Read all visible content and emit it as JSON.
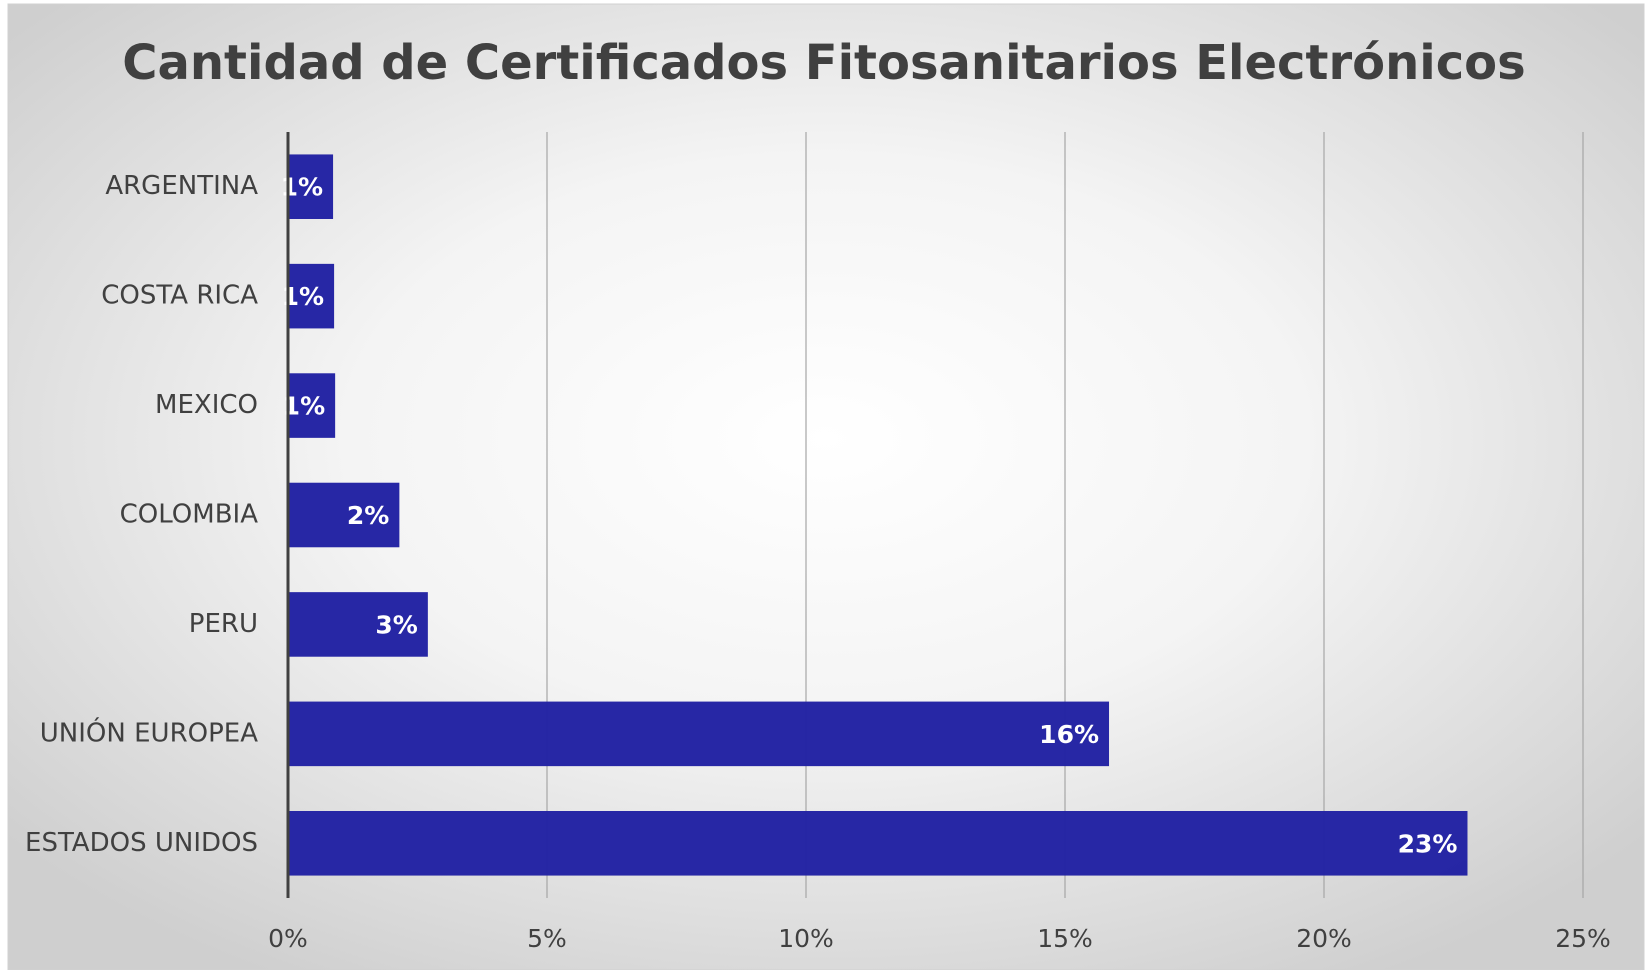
{
  "chart_data": {
    "type": "bar",
    "orientation": "horizontal",
    "title": "Cantidad de Certificados Fitosanitarios Electrónicos",
    "categories": [
      "ARGENTINA",
      "COSTA RICA",
      "MEXICO",
      "COLOMBIA",
      "PERU",
      "UNIÓN EUROPEA",
      "ESTADOS UNIDOS"
    ],
    "values": [
      0.87,
      0.89,
      0.91,
      2.15,
      2.7,
      15.85,
      22.77
    ],
    "value_labels": [
      "1%",
      "1%",
      "1%",
      "2%",
      "3%",
      "16%",
      "23%"
    ],
    "color": "#2323a3",
    "xlim": [
      0,
      25
    ],
    "xticks": [
      {
        "value": 0,
        "label": "0%"
      },
      {
        "value": 5,
        "label": "5%"
      },
      {
        "value": 10,
        "label": "10%"
      },
      {
        "value": 15,
        "label": "15%"
      },
      {
        "value": 20,
        "label": "20%"
      },
      {
        "value": 25,
        "label": "25%"
      }
    ],
    "grid": true
  }
}
